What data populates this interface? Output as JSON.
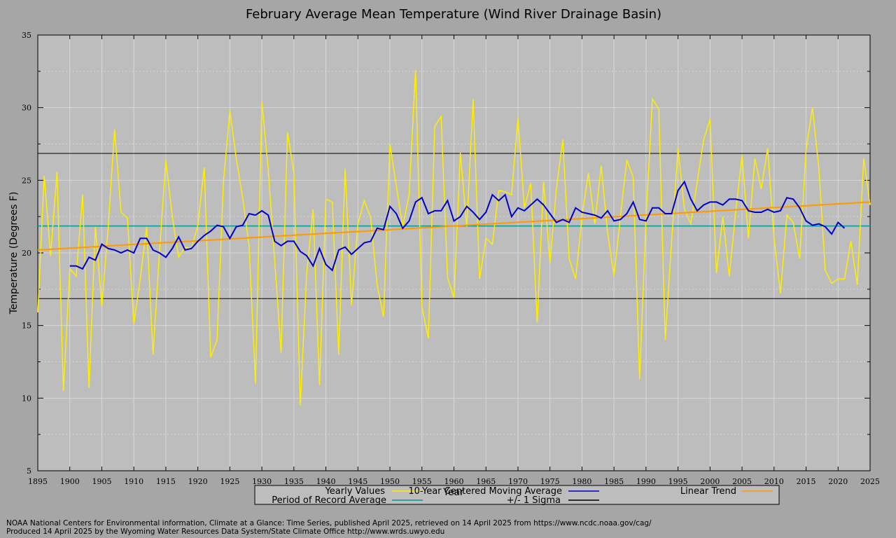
{
  "chart_data": {
    "type": "line",
    "title": "February Average Mean Temperature (Wind River Drainage Basin)",
    "xlabel": "Year",
    "ylabel": "Temperature (Degrees F)",
    "xlim": [
      1895,
      2025
    ],
    "ylim": [
      5,
      35
    ],
    "x_ticks": [
      1895,
      1900,
      1905,
      1910,
      1915,
      1920,
      1925,
      1930,
      1935,
      1940,
      1945,
      1950,
      1955,
      1960,
      1965,
      1970,
      1975,
      1980,
      1985,
      1990,
      1995,
      2000,
      2005,
      2010,
      2015,
      2020,
      2025
    ],
    "y_ticks": [
      5,
      10,
      15,
      20,
      25,
      30,
      35
    ],
    "grid": true,
    "legend_position": "bottom-center",
    "series": [
      {
        "name": "Yearly Values",
        "color": "#ffee00",
        "x": [
          1895,
          1896,
          1897,
          1898,
          1899,
          1900,
          1901,
          1902,
          1903,
          1904,
          1905,
          1906,
          1907,
          1908,
          1909,
          1910,
          1911,
          1912,
          1913,
          1914,
          1915,
          1916,
          1917,
          1918,
          1919,
          1920,
          1921,
          1922,
          1923,
          1924,
          1925,
          1926,
          1927,
          1928,
          1929,
          1930,
          1931,
          1932,
          1933,
          1934,
          1935,
          1936,
          1937,
          1938,
          1939,
          1940,
          1941,
          1942,
          1943,
          1944,
          1945,
          1946,
          1947,
          1948,
          1949,
          1950,
          1951,
          1952,
          1953,
          1954,
          1955,
          1956,
          1957,
          1958,
          1959,
          1960,
          1961,
          1962,
          1963,
          1964,
          1965,
          1966,
          1967,
          1968,
          1969,
          1970,
          1971,
          1972,
          1973,
          1974,
          1975,
          1976,
          1977,
          1978,
          1979,
          1980,
          1981,
          1982,
          1983,
          1984,
          1985,
          1986,
          1987,
          1988,
          1989,
          1990,
          1991,
          1992,
          1993,
          1994,
          1995,
          1996,
          1997,
          1998,
          1999,
          2000,
          2001,
          2002,
          2003,
          2004,
          2005,
          2006,
          2007,
          2008,
          2009,
          2010,
          2011,
          2012,
          2013,
          2014,
          2015,
          2016,
          2017,
          2018,
          2019,
          2020,
          2021,
          2022,
          2023,
          2024,
          2025
        ],
        "values": [
          15.9,
          25.3,
          19.8,
          25.6,
          10.5,
          18.9,
          18.4,
          24.0,
          10.7,
          21.8,
          16.3,
          21.8,
          28.5,
          22.8,
          22.4,
          15.1,
          18.2,
          21.8,
          13.0,
          20.0,
          26.4,
          22.5,
          19.7,
          20.4,
          20.3,
          21.9,
          25.9,
          12.8,
          14.0,
          24.9,
          29.8,
          26.5,
          23.8,
          20.5,
          11.0,
          30.4,
          25.7,
          19.5,
          13.1,
          28.3,
          25.5,
          9.5,
          18.6,
          23.0,
          10.9,
          23.7,
          23.5,
          13.0,
          25.8,
          16.4,
          22.0,
          23.6,
          22.4,
          17.8,
          15.6,
          27.5,
          24.6,
          21.8,
          24.0,
          32.6,
          16.3,
          14.1,
          28.7,
          29.4,
          18.3,
          16.9,
          26.9,
          21.8,
          30.6,
          18.2,
          21.0,
          20.6,
          24.3,
          24.2,
          24.0,
          29.3,
          23.1,
          24.8,
          15.2,
          24.9,
          19.3,
          24.4,
          27.8,
          19.6,
          18.2,
          22.5,
          25.5,
          22.0,
          26.0,
          21.4,
          18.4,
          22.5,
          26.4,
          25.2,
          11.3,
          22.4,
          30.6,
          29.9,
          14.0,
          20.8,
          27.2,
          23.0,
          22.0,
          24.9,
          27.8,
          29.2,
          18.6,
          22.5,
          18.4,
          22.8,
          26.7,
          21.0,
          26.5,
          24.4,
          27.2,
          21.0,
          17.2,
          22.6,
          22.1,
          19.6,
          27.1,
          30.0,
          25.8,
          18.8,
          17.9,
          18.2,
          18.2,
          20.8,
          17.8,
          26.5,
          23.3
        ]
      },
      {
        "name": "10-Year Centered Moving Average",
        "color": "#0000cc",
        "x": [
          1900,
          1901,
          1902,
          1903,
          1904,
          1905,
          1906,
          1907,
          1908,
          1909,
          1910,
          1911,
          1912,
          1913,
          1914,
          1915,
          1916,
          1917,
          1918,
          1919,
          1920,
          1921,
          1922,
          1923,
          1924,
          1925,
          1926,
          1927,
          1928,
          1929,
          1930,
          1931,
          1932,
          1933,
          1934,
          1935,
          1936,
          1937,
          1938,
          1939,
          1940,
          1941,
          1942,
          1943,
          1944,
          1945,
          1946,
          1947,
          1948,
          1949,
          1950,
          1951,
          1952,
          1953,
          1954,
          1955,
          1956,
          1957,
          1958,
          1959,
          1960,
          1961,
          1962,
          1963,
          1964,
          1965,
          1966,
          1967,
          1968,
          1969,
          1970,
          1971,
          1972,
          1973,
          1974,
          1975,
          1976,
          1977,
          1978,
          1979,
          1980,
          1981,
          1982,
          1983,
          1984,
          1985,
          1986,
          1987,
          1988,
          1989,
          1990,
          1991,
          1992,
          1993,
          1994,
          1995,
          1996,
          1997,
          1998,
          1999,
          2000,
          2001,
          2002,
          2003,
          2004,
          2005,
          2006,
          2007,
          2008,
          2009,
          2010,
          2011,
          2012,
          2013,
          2014,
          2015,
          2016,
          2017,
          2018,
          2019,
          2020,
          2021
        ],
        "values": [
          19.1,
          19.1,
          18.9,
          19.7,
          19.5,
          20.6,
          20.3,
          20.2,
          20.0,
          20.2,
          20.0,
          21.0,
          21.0,
          20.2,
          20.0,
          19.7,
          20.3,
          21.1,
          20.2,
          20.3,
          20.8,
          21.2,
          21.5,
          21.9,
          21.8,
          21.0,
          21.8,
          21.9,
          22.7,
          22.6,
          22.9,
          22.6,
          20.8,
          20.5,
          20.8,
          20.8,
          20.1,
          19.8,
          19.1,
          20.3,
          19.2,
          18.8,
          20.2,
          20.4,
          19.9,
          20.3,
          20.7,
          20.8,
          21.7,
          21.6,
          23.2,
          22.7,
          21.7,
          22.2,
          23.5,
          23.8,
          22.7,
          22.9,
          22.9,
          23.6,
          22.2,
          22.5,
          23.2,
          22.8,
          22.3,
          22.8,
          24.0,
          23.6,
          24.0,
          22.5,
          23.1,
          22.9,
          23.3,
          23.7,
          23.3,
          22.7,
          22.1,
          22.3,
          22.1,
          23.1,
          22.8,
          22.7,
          22.6,
          22.4,
          22.9,
          22.2,
          22.3,
          22.7,
          23.5,
          22.3,
          22.2,
          23.1,
          23.1,
          22.7,
          22.7,
          24.3,
          24.9,
          23.7,
          22.9,
          23.3,
          23.5,
          23.5,
          23.3,
          23.7,
          23.7,
          23.6,
          22.9,
          22.8,
          22.8,
          23.0,
          22.8,
          22.9,
          23.8,
          23.7,
          23.1,
          22.2,
          21.9,
          22.0,
          21.8,
          21.3,
          22.1,
          21.7
        ]
      },
      {
        "name": "Linear Trend",
        "color": "#ff9900",
        "x": [
          1895,
          2025
        ],
        "values": [
          20.2,
          23.5
        ]
      },
      {
        "name": "Period of Record Average",
        "color": "#009999",
        "x": [
          1895,
          2025
        ],
        "values": [
          21.85,
          21.85
        ]
      },
      {
        "name": "+/- 1 Sigma",
        "color": "#000000",
        "x": [
          1895,
          2025
        ],
        "values_upper": [
          26.85,
          26.85
        ],
        "values_lower": [
          16.85,
          16.85
        ]
      }
    ]
  },
  "footer": {
    "line1": "NOAA National Centers for Environmental information, Climate at a Glance: Time Series, published April 2025, retrieved on 14 April 2025 from https://www.ncdc.noaa.gov/cag/",
    "line2": "Produced 14 April 2025 by the Wyoming Water Resources Data System/State Climate Office http://www.wrds.uwyo.edu"
  }
}
